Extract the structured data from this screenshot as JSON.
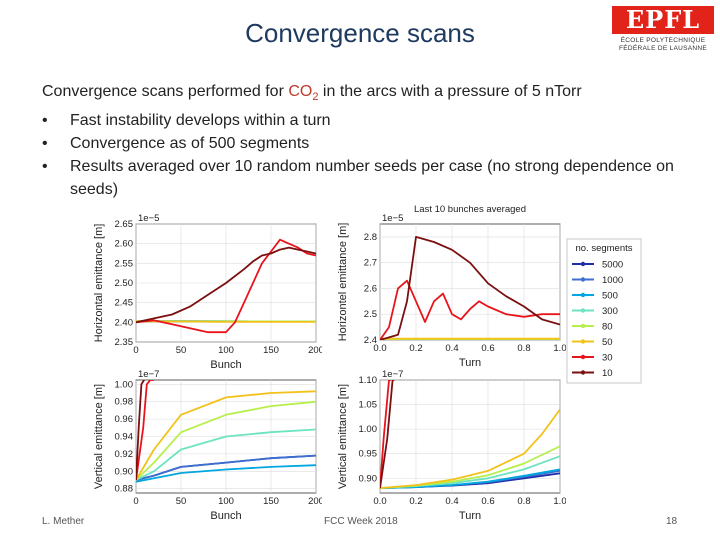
{
  "slide": {
    "title": "Convergence scans",
    "logo_text": "EPFL",
    "logo_sub1": "ÉCOLE POLYTECHNIQUE",
    "logo_sub2": "FÉDÉRALE DE LAUSANNE",
    "intro_before": "Convergence scans performed for ",
    "intro_co2": "CO",
    "intro_sub": "2",
    "intro_after": " in the arcs with a pressure of 5 nTorr",
    "bullets": [
      "Fast instability develops within a turn",
      "Convergence as of 500 segments",
      "Results averaged over 10 random number seeds per case (no strong dependence on seeds)"
    ],
    "bullet_char": "•",
    "footer_author": "L. Mether",
    "footer_event": "FCC Week 2018",
    "footer_page": "18"
  },
  "chart_data": [
    {
      "type": "line",
      "id": "h-vs-bunch",
      "xlabel": "Bunch",
      "ylabel": "Horizontal emittance [m]",
      "offset_label": "1e−5",
      "xlim": [
        0,
        200
      ],
      "ylim": [
        2.35,
        2.65
      ],
      "xticks": [
        "0",
        "50",
        "100",
        "150",
        "200"
      ],
      "yticks": [
        "2.35",
        "2.40",
        "2.45",
        "2.50",
        "2.55",
        "2.60",
        "2.65"
      ],
      "series": [
        {
          "name": "5000",
          "color": "#1f2ea8",
          "x": [
            0,
            200
          ],
          "y": [
            2.403,
            2.402
          ]
        },
        {
          "name": "1000",
          "color": "#3c6fd0",
          "x": [
            0,
            200
          ],
          "y": [
            2.403,
            2.402
          ]
        },
        {
          "name": "500",
          "color": "#00a6e0",
          "x": [
            0,
            200
          ],
          "y": [
            2.403,
            2.402
          ]
        },
        {
          "name": "300",
          "color": "#6de3c0",
          "x": [
            0,
            200
          ],
          "y": [
            2.403,
            2.402
          ]
        },
        {
          "name": "80",
          "color": "#b6ef4a",
          "x": [
            0,
            200
          ],
          "y": [
            2.403,
            2.402
          ]
        },
        {
          "name": "50",
          "color": "#f2c21b",
          "x": [
            0,
            30,
            60,
            90,
            120,
            150,
            180,
            200
          ],
          "y": [
            2.403,
            2.402,
            2.402,
            2.401,
            2.401,
            2.401,
            2.401,
            2.401
          ]
        },
        {
          "name": "30",
          "color": "#e8141c",
          "x": [
            0,
            20,
            40,
            60,
            80,
            100,
            110,
            120,
            130,
            140,
            150,
            160,
            170,
            180,
            190,
            200
          ],
          "y": [
            2.4,
            2.405,
            2.395,
            2.385,
            2.375,
            2.375,
            2.4,
            2.45,
            2.5,
            2.55,
            2.58,
            2.61,
            2.6,
            2.59,
            2.575,
            2.57
          ]
        },
        {
          "name": "10",
          "color": "#7a0f0f",
          "x": [
            0,
            20,
            40,
            60,
            80,
            100,
            120,
            130,
            140,
            150,
            160,
            170,
            180,
            190,
            200
          ],
          "y": [
            2.4,
            2.41,
            2.42,
            2.44,
            2.47,
            2.5,
            2.535,
            2.555,
            2.57,
            2.575,
            2.585,
            2.59,
            2.585,
            2.58,
            2.575
          ]
        }
      ]
    },
    {
      "type": "line",
      "id": "h-vs-turn",
      "title": "Last 10 bunches averaged",
      "xlabel": "Turn",
      "ylabel": "Horizontel emittance [m]",
      "offset_label": "1e−5",
      "xlim": [
        0,
        1.0
      ],
      "ylim": [
        2.4,
        2.85
      ],
      "xticks": [
        "0.0",
        "0.2",
        "0.4",
        "0.6",
        "0.8",
        "1.0"
      ],
      "yticks": [
        "2.4",
        "2.5",
        "2.6",
        "2.7",
        "2.8"
      ],
      "series": [
        {
          "name": "5000",
          "color": "#1f2ea8",
          "x": [
            0,
            1.0
          ],
          "y": [
            2.4,
            2.4
          ]
        },
        {
          "name": "1000",
          "color": "#3c6fd0",
          "x": [
            0,
            1.0
          ],
          "y": [
            2.4,
            2.4
          ]
        },
        {
          "name": "500",
          "color": "#00a6e0",
          "x": [
            0,
            1.0
          ],
          "y": [
            2.4,
            2.4
          ]
        },
        {
          "name": "300",
          "color": "#6de3c0",
          "x": [
            0,
            1.0
          ],
          "y": [
            2.4,
            2.4
          ]
        },
        {
          "name": "80",
          "color": "#b6ef4a",
          "x": [
            0,
            1.0
          ],
          "y": [
            2.4,
            2.4
          ]
        },
        {
          "name": "50",
          "color": "#f2c21b",
          "x": [
            0,
            1.0
          ],
          "y": [
            2.405,
            2.405
          ]
        },
        {
          "name": "30",
          "color": "#e8141c",
          "x": [
            0,
            0.05,
            0.1,
            0.15,
            0.2,
            0.25,
            0.3,
            0.35,
            0.4,
            0.45,
            0.5,
            0.55,
            0.6,
            0.7,
            0.8,
            0.9,
            1.0
          ],
          "y": [
            2.4,
            2.45,
            2.6,
            2.63,
            2.55,
            2.47,
            2.55,
            2.58,
            2.5,
            2.48,
            2.52,
            2.55,
            2.53,
            2.5,
            2.49,
            2.5,
            2.5
          ]
        },
        {
          "name": "10",
          "color": "#7a0f0f",
          "x": [
            0,
            0.1,
            0.15,
            0.2,
            0.3,
            0.4,
            0.5,
            0.6,
            0.7,
            0.8,
            0.9,
            1.0
          ],
          "y": [
            2.4,
            2.42,
            2.55,
            2.8,
            2.78,
            2.75,
            2.7,
            2.62,
            2.57,
            2.53,
            2.48,
            2.46
          ]
        }
      ]
    },
    {
      "type": "line",
      "id": "v-vs-bunch",
      "xlabel": "Bunch",
      "ylabel": "Vertical emittance [m]",
      "offset_label": "1e−7",
      "xlim": [
        0,
        200
      ],
      "ylim": [
        0.875,
        1.005
      ],
      "xticks": [
        "0",
        "50",
        "100",
        "150",
        "200"
      ],
      "yticks": [
        "0.88",
        "0.90",
        "0.92",
        "0.94",
        "0.96",
        "0.98",
        "1.00"
      ],
      "series": [
        {
          "name": "5000",
          "color": "#1f2ea8",
          "x": [
            0,
            20,
            50,
            100,
            150,
            200
          ],
          "y": [
            0.89,
            0.895,
            0.905,
            0.91,
            0.915,
            0.918
          ]
        },
        {
          "name": "1000",
          "color": "#3c6fd0",
          "x": [
            0,
            20,
            50,
            100,
            150,
            200
          ],
          "y": [
            0.89,
            0.895,
            0.905,
            0.91,
            0.915,
            0.918
          ]
        },
        {
          "name": "500",
          "color": "#00a6e0",
          "x": [
            0,
            20,
            50,
            100,
            150,
            200
          ],
          "y": [
            0.888,
            0.892,
            0.898,
            0.902,
            0.905,
            0.907
          ]
        },
        {
          "name": "300",
          "color": "#6de3c0",
          "x": [
            0,
            20,
            50,
            100,
            150,
            200
          ],
          "y": [
            0.89,
            0.9,
            0.925,
            0.94,
            0.945,
            0.948
          ]
        },
        {
          "name": "80",
          "color": "#b6ef4a",
          "x": [
            0,
            20,
            50,
            100,
            150,
            200
          ],
          "y": [
            0.89,
            0.91,
            0.945,
            0.965,
            0.975,
            0.98
          ]
        },
        {
          "name": "50",
          "color": "#f2c21b",
          "x": [
            0,
            20,
            50,
            100,
            150,
            200
          ],
          "y": [
            0.89,
            0.925,
            0.965,
            0.985,
            0.99,
            0.992
          ]
        },
        {
          "name": "30",
          "color": "#e8141c",
          "x": [
            0,
            8,
            12,
            16,
            20
          ],
          "y": [
            0.89,
            0.95,
            1.0,
            1.005,
            1.005
          ]
        },
        {
          "name": "10",
          "color": "#7a0f0f",
          "x": [
            0,
            3,
            6,
            9
          ],
          "y": [
            0.89,
            0.95,
            1.0,
            1.005
          ]
        }
      ]
    },
    {
      "type": "line",
      "id": "v-vs-turn",
      "xlabel": "Turn",
      "ylabel": "Vertical emittance [m]",
      "offset_label": "1e−7",
      "xlim": [
        0,
        1.0
      ],
      "ylim": [
        0.87,
        1.1
      ],
      "xticks": [
        "0.0",
        "0.2",
        "0.4",
        "0.6",
        "0.8",
        "1.0"
      ],
      "yticks": [
        "0.90",
        "0.95",
        "1.00",
        "1.05",
        "1.10"
      ],
      "series": [
        {
          "name": "5000",
          "color": "#1f2ea8",
          "x": [
            0,
            0.2,
            0.4,
            0.6,
            0.8,
            1.0
          ],
          "y": [
            0.88,
            0.882,
            0.885,
            0.89,
            0.9,
            0.91
          ]
        },
        {
          "name": "1000",
          "color": "#3c6fd0",
          "x": [
            0,
            0.2,
            0.4,
            0.6,
            0.8,
            1.0
          ],
          "y": [
            0.88,
            0.882,
            0.886,
            0.892,
            0.903,
            0.915
          ]
        },
        {
          "name": "500",
          "color": "#00a6e0",
          "x": [
            0,
            0.2,
            0.4,
            0.6,
            0.8,
            1.0
          ],
          "y": [
            0.88,
            0.882,
            0.886,
            0.893,
            0.905,
            0.918
          ]
        },
        {
          "name": "300",
          "color": "#6de3c0",
          "x": [
            0,
            0.2,
            0.4,
            0.6,
            0.8,
            1.0
          ],
          "y": [
            0.88,
            0.884,
            0.89,
            0.9,
            0.918,
            0.945
          ]
        },
        {
          "name": "80",
          "color": "#b6ef4a",
          "x": [
            0,
            0.2,
            0.4,
            0.6,
            0.8,
            1.0
          ],
          "y": [
            0.88,
            0.885,
            0.893,
            0.906,
            0.93,
            0.965
          ]
        },
        {
          "name": "50",
          "color": "#f2c21b",
          "x": [
            0,
            0.2,
            0.4,
            0.6,
            0.8,
            0.9,
            1.0
          ],
          "y": [
            0.88,
            0.886,
            0.897,
            0.915,
            0.95,
            0.99,
            1.04
          ]
        },
        {
          "name": "30",
          "color": "#e8141c",
          "x": [
            0,
            0.02,
            0.05,
            0.06
          ],
          "y": [
            0.88,
            0.98,
            1.1,
            1.1
          ]
        },
        {
          "name": "10",
          "color": "#7a0f0f",
          "x": [
            0,
            0.04,
            0.07,
            0.08
          ],
          "y": [
            0.88,
            0.98,
            1.1,
            1.1
          ]
        }
      ]
    }
  ],
  "legend": {
    "title": "no. segments",
    "entries": [
      {
        "label": "5000",
        "color": "#1f2ea8"
      },
      {
        "label": "1000",
        "color": "#3c6fd0"
      },
      {
        "label": "500",
        "color": "#00a6e0"
      },
      {
        "label": "300",
        "color": "#6de3c0"
      },
      {
        "label": "80",
        "color": "#b6ef4a"
      },
      {
        "label": "50",
        "color": "#f2c21b"
      },
      {
        "label": "30",
        "color": "#e8141c"
      },
      {
        "label": "10",
        "color": "#7a0f0f"
      }
    ]
  }
}
